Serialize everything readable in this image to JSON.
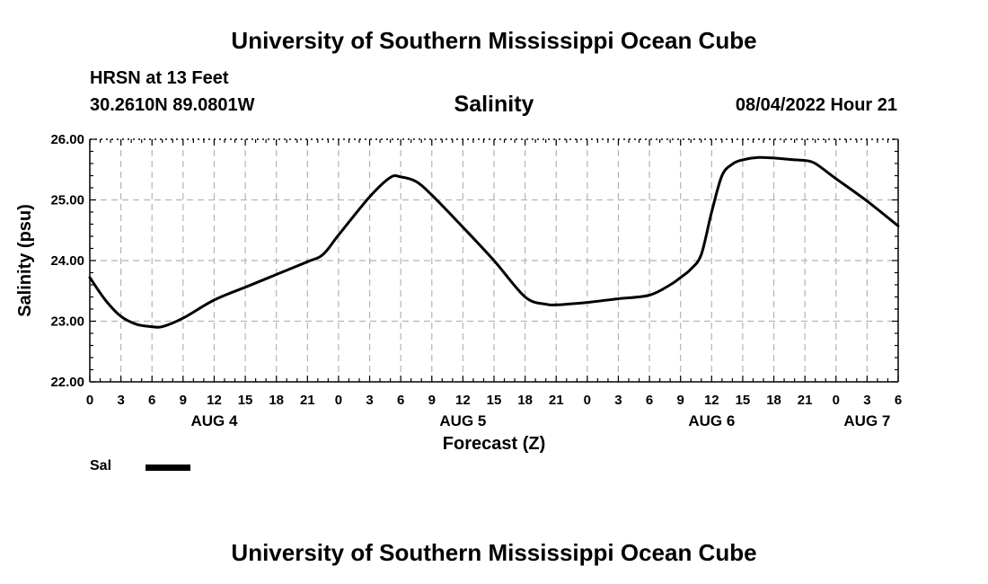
{
  "header": {
    "title": "University of Southern Mississippi Ocean Cube",
    "station": "HRSN at 13 Feet",
    "coordinates": "30.2610N  89.0801W",
    "datetime": "08/04/2022 Hour 21"
  },
  "footer": {
    "title": "University of Southern Mississippi Ocean Cube"
  },
  "legend": {
    "series_label": "Sal"
  },
  "colors": {
    "line": "#000000",
    "grid": "#b4b4b4",
    "background": "#ffffff"
  },
  "chart_data": {
    "type": "line",
    "title": "Salinity",
    "xlabel": "Forecast (Z)",
    "ylabel": "Salinity (psu)",
    "xlim": [
      0,
      78
    ],
    "ylim": [
      22,
      26
    ],
    "x_unit": "forecast hours from Aug 4 00Z",
    "yticks": [
      "22.00",
      "23.00",
      "24.00",
      "25.00",
      "26.00"
    ],
    "xtick_labels": [
      "0",
      "3",
      "6",
      "9",
      "12",
      "15",
      "18",
      "21",
      "0",
      "3",
      "6",
      "9",
      "12",
      "15",
      "18",
      "21",
      "0",
      "3",
      "6",
      "9",
      "12",
      "15",
      "18",
      "21",
      "0",
      "3",
      "6"
    ],
    "day_labels": [
      {
        "label": "AUG 4",
        "hour": 12
      },
      {
        "label": "AUG 5",
        "hour": 36
      },
      {
        "label": "AUG 6",
        "hour": 60
      },
      {
        "label": "AUG 7",
        "hour": 75
      }
    ],
    "grid": true,
    "series": [
      {
        "name": "Sal",
        "x": [
          0,
          1.5,
          3,
          4.5,
          6,
          7,
          9,
          12,
          15,
          18,
          21,
          22.5,
          24,
          27,
          29,
          30,
          31.5,
          33,
          36,
          39,
          42,
          44,
          45,
          46,
          48,
          51,
          54,
          56,
          57,
          58,
          59,
          60,
          61,
          62,
          63,
          64.5,
          66,
          68,
          69,
          70,
          72,
          75,
          78
        ],
        "values": [
          23.72,
          23.35,
          23.08,
          22.95,
          22.91,
          22.91,
          23.05,
          23.35,
          23.56,
          23.77,
          23.98,
          24.1,
          24.42,
          25.05,
          25.37,
          25.38,
          25.3,
          25.08,
          24.55,
          24.0,
          23.4,
          23.28,
          23.27,
          23.28,
          23.31,
          23.37,
          23.43,
          23.6,
          23.72,
          23.86,
          24.1,
          24.8,
          25.4,
          25.59,
          25.66,
          25.7,
          25.69,
          25.66,
          25.65,
          25.6,
          25.35,
          24.98,
          24.57
        ]
      }
    ]
  }
}
